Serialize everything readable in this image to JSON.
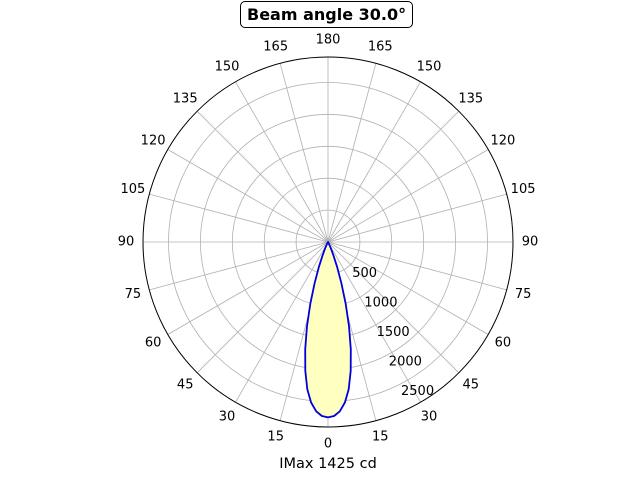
{
  "chart_data": {
    "type": "line",
    "polar": true,
    "title": "Beam angle 30.0°",
    "xlabel": "IMax 1425 cd",
    "angle_ticks_left": [
      "0",
      "15",
      "30",
      "45",
      "60",
      "75",
      "90",
      "105",
      "120",
      "135",
      "150",
      "165",
      "180"
    ],
    "angle_ticks_right": [
      "15",
      "30",
      "45",
      "60",
      "75",
      "90",
      "105",
      "120",
      "135",
      "150",
      "165"
    ],
    "radial_ticks": [
      500,
      1000,
      1500,
      2000,
      2500
    ],
    "rlim": [
      0,
      2900
    ],
    "grid": true,
    "fill_color": "#ffffc0",
    "line_color": "#0000dd",
    "series": [
      {
        "angle_deg": [
          0,
          2,
          4,
          6,
          8,
          10,
          12,
          14,
          16,
          18,
          20,
          22,
          24,
          26,
          28,
          30
        ],
        "intensity": [
          2750,
          2730,
          2660,
          2530,
          2330,
          2050,
          1720,
          1360,
          1000,
          680,
          420,
          230,
          110,
          40,
          10,
          0
        ]
      }
    ]
  }
}
